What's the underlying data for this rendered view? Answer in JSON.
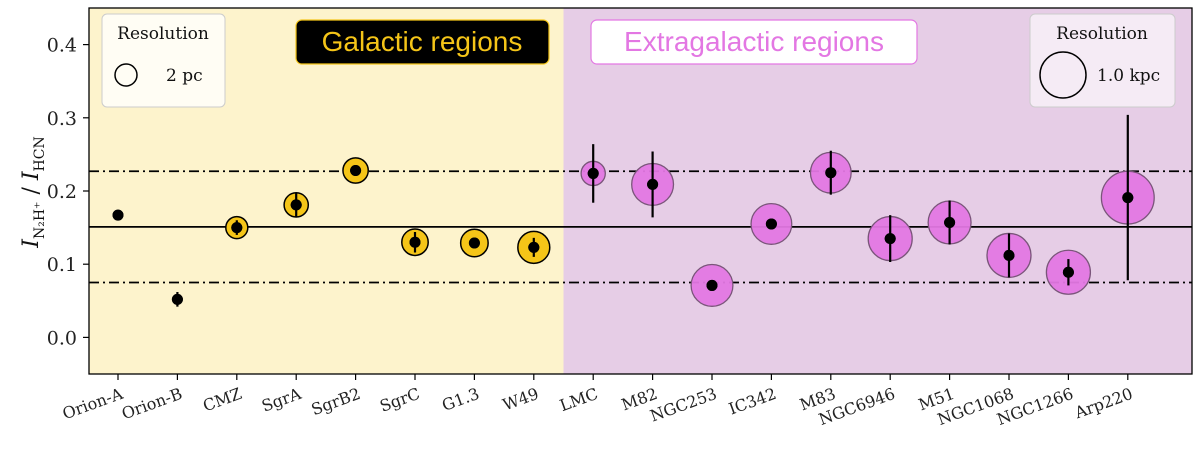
{
  "chart_data": {
    "type": "scatter",
    "title": "",
    "xlabel": "",
    "ylabel": "I_{N2H+} / I_{HCN}",
    "ylabel_main": "I",
    "ylabel_num_sub": "N₂H⁺",
    "ylabel_den_sub": "HCN",
    "ylim": [
      -0.05,
      0.45
    ],
    "yticks": [
      0.0,
      0.1,
      0.2,
      0.3,
      0.4
    ],
    "ytick_labels": [
      "0.0",
      "0.1",
      "0.2",
      "0.3",
      "0.4"
    ],
    "categories": [
      "Orion-A",
      "Orion-B",
      "CMZ",
      "SgrA",
      "SgrB2",
      "SgrC",
      "G1.3",
      "W49",
      "LMC",
      "M82",
      "NGC253",
      "IC342",
      "M83",
      "NGC6946",
      "M51",
      "NGC1068",
      "NGC1266",
      "Arp220"
    ],
    "values": [
      0.167,
      0.052,
      0.15,
      0.181,
      0.228,
      0.13,
      0.129,
      0.123,
      0.224,
      0.209,
      0.071,
      0.155,
      0.225,
      0.135,
      0.157,
      0.112,
      0.089,
      0.191
    ],
    "errors": [
      0.0,
      0.01,
      0.01,
      0.016,
      0.007,
      0.014,
      0.006,
      0.013,
      0.04,
      0.045,
      0.006,
      0.007,
      0.03,
      0.032,
      0.03,
      0.03,
      0.018,
      0.113
    ],
    "marker_size_relative": [
      0,
      0,
      1.0,
      1.1,
      1.15,
      1.2,
      1.25,
      1.45,
      1.1,
      1.9,
      1.9,
      1.85,
      1.85,
      2.0,
      1.95,
      2.0,
      2.0,
      2.4
    ],
    "groups": [
      {
        "name": "Galactic regions",
        "start": 0,
        "end": 7,
        "background": "#fdf3cc",
        "marker_color": "#f5c518"
      },
      {
        "name": "Extragalactic regions",
        "start": 8,
        "end": 17,
        "background": "#e6cde6",
        "marker_color": "#e377e3"
      }
    ],
    "reference_lines": [
      {
        "y": 0.151,
        "style": "solid"
      },
      {
        "y": 0.227,
        "style": "dashdot"
      },
      {
        "y": 0.075,
        "style": "dashdot"
      }
    ],
    "grid": false,
    "legend": {
      "galactic": {
        "title": "Resolution",
        "value": "2 pc",
        "placement": "top-left"
      },
      "extragalactic": {
        "title": "Resolution",
        "value": "1.0 kpc",
        "placement": "top-right"
      }
    },
    "labels": {
      "galactic": "Galactic regions",
      "extragalactic": "Extragalactic regions"
    },
    "colors": {
      "point": "#000000",
      "galactic_label_bg": "#000000",
      "galactic_label_text": "#f5c518",
      "extragalactic_label_bg": "#ffffff",
      "extragalactic_label_text": "#e377e3"
    }
  }
}
